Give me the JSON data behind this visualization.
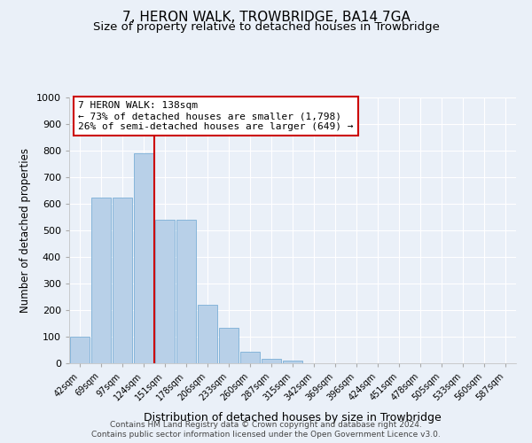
{
  "title": "7, HERON WALK, TROWBRIDGE, BA14 7GA",
  "subtitle": "Size of property relative to detached houses in Trowbridge",
  "xlabel": "Distribution of detached houses by size in Trowbridge",
  "ylabel": "Number of detached properties",
  "bar_labels": [
    "42sqm",
    "69sqm",
    "97sqm",
    "124sqm",
    "151sqm",
    "178sqm",
    "206sqm",
    "233sqm",
    "260sqm",
    "287sqm",
    "315sqm",
    "342sqm",
    "369sqm",
    "396sqm",
    "424sqm",
    "451sqm",
    "478sqm",
    "505sqm",
    "533sqm",
    "560sqm",
    "587sqm"
  ],
  "bar_values": [
    100,
    625,
    625,
    790,
    540,
    540,
    220,
    135,
    43,
    18,
    10,
    0,
    0,
    0,
    0,
    0,
    0,
    0,
    0,
    0,
    0
  ],
  "bar_color": "#b8d0e8",
  "bar_edgecolor": "#7aaed6",
  "vline_x": 3.5,
  "vline_color": "#cc0000",
  "ylim": [
    0,
    1000
  ],
  "yticks": [
    0,
    100,
    200,
    300,
    400,
    500,
    600,
    700,
    800,
    900,
    1000
  ],
  "annotation_title": "7 HERON WALK: 138sqm",
  "annotation_line1": "← 73% of detached houses are smaller (1,798)",
  "annotation_line2": "26% of semi-detached houses are larger (649) →",
  "annotation_box_color": "#ffffff",
  "annotation_box_edgecolor": "#cc0000",
  "footer_line1": "Contains HM Land Registry data © Crown copyright and database right 2024.",
  "footer_line2": "Contains public sector information licensed under the Open Government Licence v3.0.",
  "bg_color": "#eaf0f8",
  "grid_color": "#ffffff",
  "title_fontsize": 11,
  "subtitle_fontsize": 9.5
}
